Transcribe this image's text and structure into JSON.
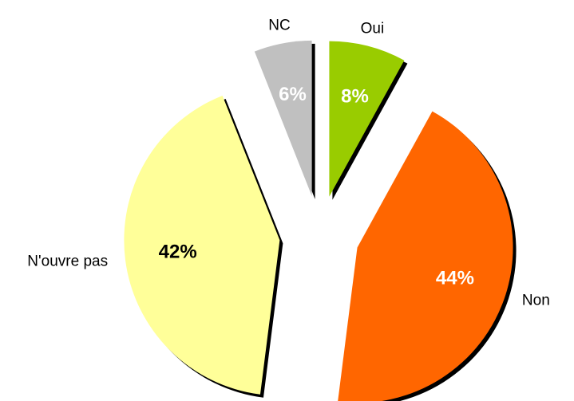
{
  "chart_data": {
    "type": "pie",
    "categories": [
      "Oui",
      "Non",
      "N'ouvre pas",
      "NC"
    ],
    "values": [
      8,
      44,
      42,
      6
    ],
    "value_labels": [
      "8%",
      "44%",
      "42%",
      "6%"
    ],
    "colors": [
      "#99cc00",
      "#ff6600",
      "#ffff99",
      "#c0c0c0"
    ]
  }
}
